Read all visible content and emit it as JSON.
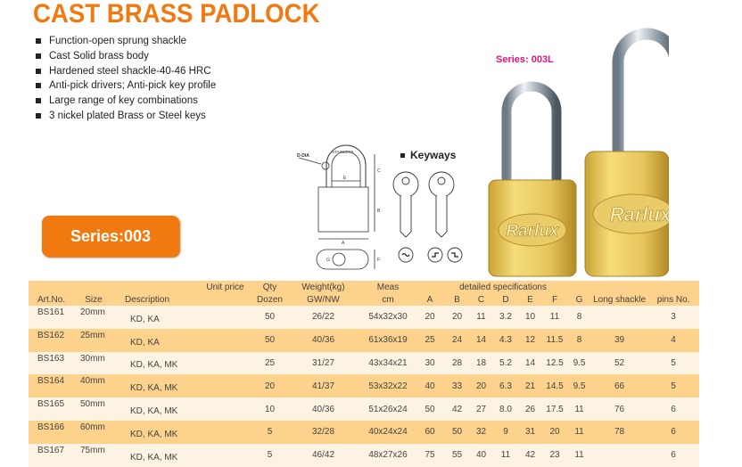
{
  "title": "CAST BRASS PADLOCK",
  "features": [
    "Function-open sprung shackle",
    "Cast Solid brass body",
    "Hardened steel shackle-40-46 HRC",
    "Anti-pick drivers; Anti-pick key profile",
    "Large range of key combinations",
    "3 nickel plated Brass or Steel keys"
  ],
  "series_button": "Series:003",
  "series_long": "Series: 003L",
  "brand": "Rarlux",
  "diagram": {
    "d_dia": "D-DIA",
    "stainless": "STAINLESS",
    "labels": {
      "a": "A",
      "b": "B",
      "c": "C",
      "e": "E",
      "f": "F",
      "g": "G"
    }
  },
  "keyways_label": "Keyways",
  "colors": {
    "title": "#f07a10",
    "series_long": "#e0157f",
    "row_dark": "#fcd28c",
    "row_light": "#fdf3e2"
  },
  "table": {
    "header_top": {
      "unit_price": "Unit price",
      "qty": "Qty",
      "weight": "Weight(kg)",
      "meas": "Meas",
      "detail": "detailed specifications"
    },
    "header_bottom": {
      "art": "Art.No.",
      "size": "Size",
      "desc": "Description",
      "qty": "Dozen",
      "weight": "GW/NW",
      "meas": "cm",
      "a": "A",
      "b": "B",
      "c": "C",
      "d": "D",
      "e": "E",
      "f": "F",
      "g": "G",
      "long": "Long shackle",
      "pins": "pins No."
    },
    "rows": [
      {
        "art": "BS161",
        "size": "20mm",
        "desc": "KD, KA",
        "price": "",
        "qty": "50",
        "weight": "26/22",
        "meas": "54x32x30",
        "a": "20",
        "b": "20",
        "c": "11",
        "d": "3.2",
        "e": "10",
        "f": "11",
        "g": "8",
        "long": "",
        "pins": "3"
      },
      {
        "art": "BS162",
        "size": "25mm",
        "desc": "KD, KA",
        "price": "",
        "qty": "50",
        "weight": "40/36",
        "meas": "61x36x19",
        "a": "25",
        "b": "24",
        "c": "14",
        "d": "4.3",
        "e": "12",
        "f": "11.5",
        "g": "8",
        "long": "39",
        "pins": "4"
      },
      {
        "art": "BS163",
        "size": "30mm",
        "desc": "KD, KA, MK",
        "price": "",
        "qty": "25",
        "weight": "31/27",
        "meas": "43x34x21",
        "a": "30",
        "b": "28",
        "c": "18",
        "d": "5.2",
        "e": "14",
        "f": "12.5",
        "g": "9.5",
        "long": "52",
        "pins": "5"
      },
      {
        "art": "BS164",
        "size": "40mm",
        "desc": "KD, KA, MK",
        "price": "",
        "qty": "20",
        "weight": "41/37",
        "meas": "53x32x22",
        "a": "40",
        "b": "33",
        "c": "20",
        "d": "6.3",
        "e": "21",
        "f": "14.5",
        "g": "9.5",
        "long": "66",
        "pins": "5"
      },
      {
        "art": "BS165",
        "size": "50mm",
        "desc": "KD, KA, MK",
        "price": "",
        "qty": "10",
        "weight": "40/36",
        "meas": "51x26x24",
        "a": "50",
        "b": "42",
        "c": "27",
        "d": "8.0",
        "e": "26",
        "f": "17.5",
        "g": "11",
        "long": "76",
        "pins": "6"
      },
      {
        "art": "BS166",
        "size": "60mm",
        "desc": "KD, KA, MK",
        "price": "",
        "qty": "5",
        "weight": "32/28",
        "meas": "40x24x24",
        "a": "60",
        "b": "50",
        "c": "32",
        "d": "9",
        "e": "31",
        "f": "20",
        "g": "11",
        "long": "78",
        "pins": "6"
      },
      {
        "art": "BS167",
        "size": "75mm",
        "desc": "KD, KA, MK",
        "price": "",
        "qty": "5",
        "weight": "46/42",
        "meas": "48x27x26",
        "a": "75",
        "b": "55",
        "c": "40",
        "d": "11",
        "e": "42",
        "f": "23",
        "g": "11",
        "long": "",
        "pins": "6"
      }
    ]
  }
}
